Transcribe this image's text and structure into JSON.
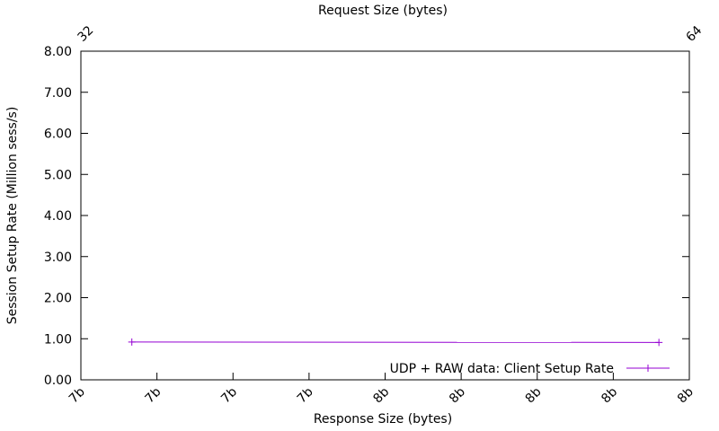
{
  "chart_data": {
    "type": "line",
    "title": "",
    "x2label": "Request Size (bytes)",
    "x2_ticks": [
      "32",
      "64"
    ],
    "xlabel": "Response Size (bytes)",
    "x_ticks": [
      "7b",
      "7b",
      "7b",
      "7b",
      "8b",
      "8b",
      "8b",
      "8b",
      "8b"
    ],
    "ylabel": "Session Setup Rate (Million sess/s)",
    "y_ticks": [
      "0.00",
      "1.00",
      "2.00",
      "3.00",
      "4.00",
      "5.00",
      "6.00",
      "7.00",
      "8.00"
    ],
    "ylim": [
      0,
      8
    ],
    "xlim": [
      0,
      8
    ],
    "grid": false,
    "legend_position": "bottom-right",
    "series": [
      {
        "name": "UDP + RAW data: Client Setup Rate",
        "color": "#9400d3",
        "marker": "plus",
        "x": [
          0.67,
          7.6
        ],
        "y": [
          0.92,
          0.91
        ]
      }
    ]
  }
}
